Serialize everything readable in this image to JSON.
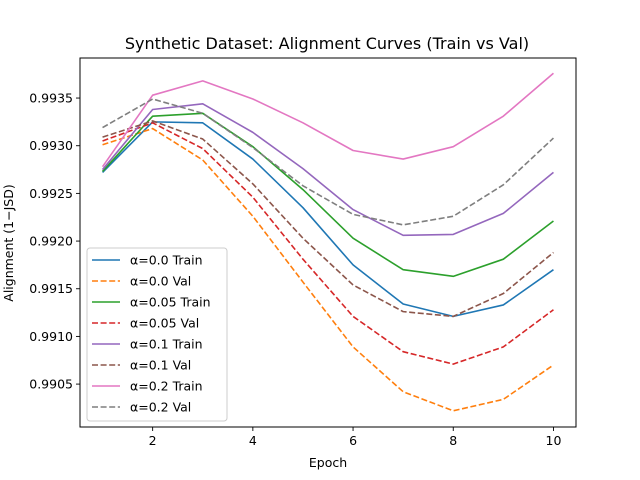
{
  "chart_data": {
    "type": "line",
    "title": "Synthetic Dataset: Alignment Curves (Train vs Val)",
    "xlabel": "Epoch",
    "ylabel": "Alignment (1−JSD)",
    "x": [
      1,
      2,
      3,
      4,
      5,
      6,
      7,
      8,
      9,
      10
    ],
    "xlim": [
      0.55,
      10.45
    ],
    "ylim": [
      0.99005,
      0.99392
    ],
    "xticks": [
      2,
      4,
      6,
      8,
      10
    ],
    "yticks": [
      0.9905,
      0.991,
      0.9915,
      0.992,
      0.9925,
      0.993,
      0.9935
    ],
    "ytick_labels": [
      "0.9905",
      "0.9910",
      "0.9915",
      "0.9920",
      "0.9925",
      "0.9930",
      "0.9935"
    ],
    "grid": false,
    "legend_position": "lower-left",
    "series": [
      {
        "name": "α=0.0 Train",
        "color": "#1f77b4",
        "dash": "solid",
        "values": [
          0.99272,
          0.99325,
          0.99324,
          0.99286,
          0.99235,
          0.99175,
          0.99134,
          0.99121,
          0.99133,
          0.9917
        ]
      },
      {
        "name": "α=0.0 Val",
        "color": "#ff7f0e",
        "dash": "dashed",
        "values": [
          0.99301,
          0.99318,
          0.99285,
          0.99226,
          0.99157,
          0.99089,
          0.99042,
          0.99022,
          0.99034,
          0.9907
        ]
      },
      {
        "name": "α=0.05 Train",
        "color": "#2ca02c",
        "dash": "solid",
        "values": [
          0.99273,
          0.99331,
          0.99334,
          0.99299,
          0.99254,
          0.99203,
          0.9917,
          0.99163,
          0.99181,
          0.99221
        ]
      },
      {
        "name": "α=0.05 Val",
        "color": "#d62728",
        "dash": "dashed",
        "values": [
          0.99305,
          0.99324,
          0.99297,
          0.99246,
          0.99181,
          0.99121,
          0.99084,
          0.99071,
          0.99089,
          0.99128
        ]
      },
      {
        "name": "α=0.1 Train",
        "color": "#9467bd",
        "dash": "solid",
        "values": [
          0.99275,
          0.99338,
          0.99344,
          0.99314,
          0.99276,
          0.99233,
          0.99206,
          0.99207,
          0.99229,
          0.99272
        ]
      },
      {
        "name": "α=0.1 Val",
        "color": "#8c564b",
        "dash": "dashed",
        "values": [
          0.99309,
          0.99326,
          0.99307,
          0.9926,
          0.99203,
          0.99154,
          0.99126,
          0.99121,
          0.99145,
          0.99188
        ]
      },
      {
        "name": "α=0.2 Train",
        "color": "#e377c2",
        "dash": "solid",
        "values": [
          0.99278,
          0.99353,
          0.99368,
          0.99349,
          0.99324,
          0.99295,
          0.99286,
          0.99299,
          0.99331,
          0.99376
        ]
      },
      {
        "name": "α=0.2 Val",
        "color": "#7f7f7f",
        "dash": "dashed",
        "values": [
          0.99319,
          0.99349,
          0.99334,
          0.99298,
          0.99258,
          0.99228,
          0.99217,
          0.99226,
          0.99259,
          0.99308
        ]
      }
    ]
  }
}
